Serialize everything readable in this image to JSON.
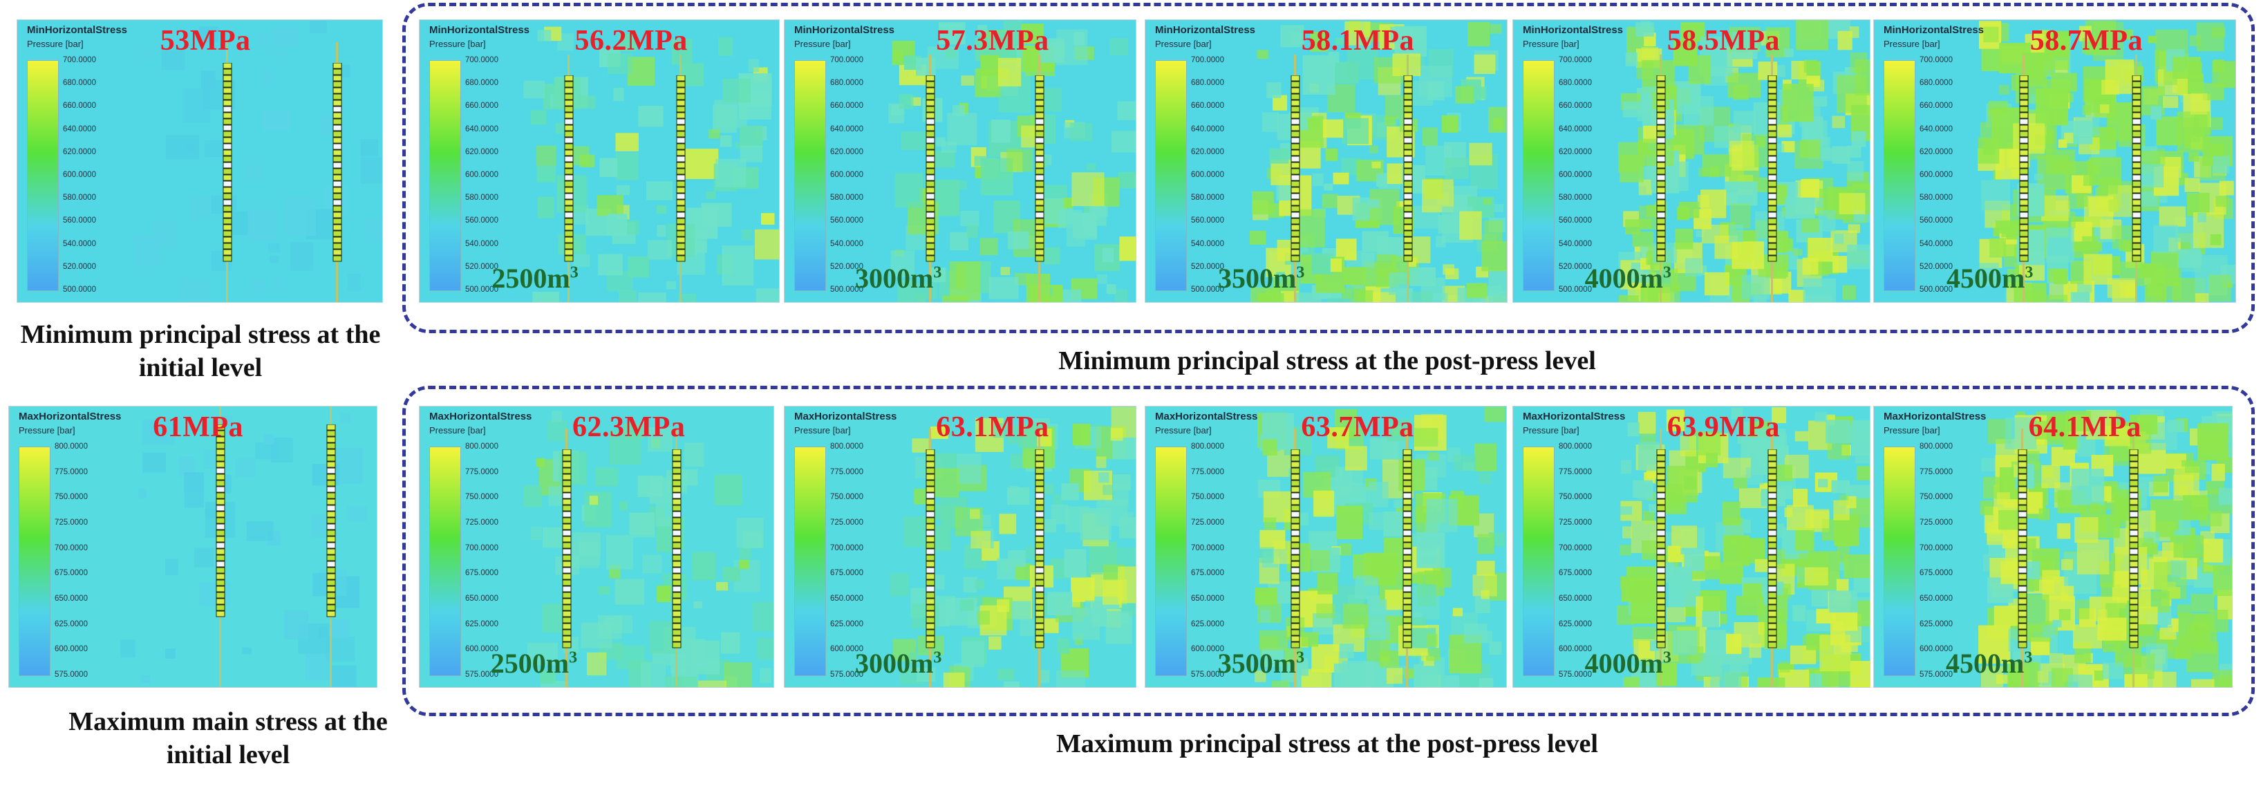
{
  "colors": {
    "accent_pressure": "#e8202a",
    "volume_text": "#1e6b2d",
    "frame": "#33399a",
    "colorbar": [
      "#f3f53a",
      "#57e23c",
      "#4fd5e8",
      "#4aa6f0"
    ]
  },
  "captions": {
    "min_initial": "Minimum principal stress at the initial level",
    "min_post": "Minimum principal stress at the post-press level",
    "max_initial": "Maximum main stress at the initial level",
    "max_post": "Maximum principal stress at the post-press level"
  },
  "rows": [
    {
      "title": "MinHorizontalStress",
      "unit": "Pressure [bar]",
      "ticks": [
        "700.0000",
        "680.0000",
        "660.0000",
        "640.0000",
        "620.0000",
        "600.0000",
        "580.0000",
        "560.0000",
        "540.0000",
        "520.0000",
        "500.0000"
      ],
      "panels": [
        {
          "pressure": "53MPa",
          "volume": "",
          "intensity": 0
        },
        {
          "pressure": "56.2MPa",
          "volume": "2500m",
          "intensity": 1
        },
        {
          "pressure": "57.3MPa",
          "volume": "3000m",
          "intensity": 2
        },
        {
          "pressure": "58.1MPa",
          "volume": "3500m",
          "intensity": 3
        },
        {
          "pressure": "58.5MPa",
          "volume": "4000m",
          "intensity": 4
        },
        {
          "pressure": "58.7MPa",
          "volume": "4500m",
          "intensity": 5
        }
      ]
    },
    {
      "title": "MaxHorizontalStress",
      "unit": "Pressure [bar]",
      "ticks": [
        "800.0000",
        "775.0000",
        "750.0000",
        "725.0000",
        "700.0000",
        "675.0000",
        "650.0000",
        "625.0000",
        "600.0000",
        "575.0000"
      ],
      "panels": [
        {
          "pressure": "61MPa",
          "volume": "",
          "intensity": 0
        },
        {
          "pressure": "62.3MPa",
          "volume": "2500m",
          "intensity": 1
        },
        {
          "pressure": "63.1MPa",
          "volume": "3000m",
          "intensity": 2
        },
        {
          "pressure": "63.7MPa",
          "volume": "3500m",
          "intensity": 3
        },
        {
          "pressure": "63.9MPa",
          "volume": "4000m",
          "intensity": 4
        },
        {
          "pressure": "64.1MPa",
          "volume": "4500m",
          "intensity": 5
        }
      ]
    }
  ]
}
